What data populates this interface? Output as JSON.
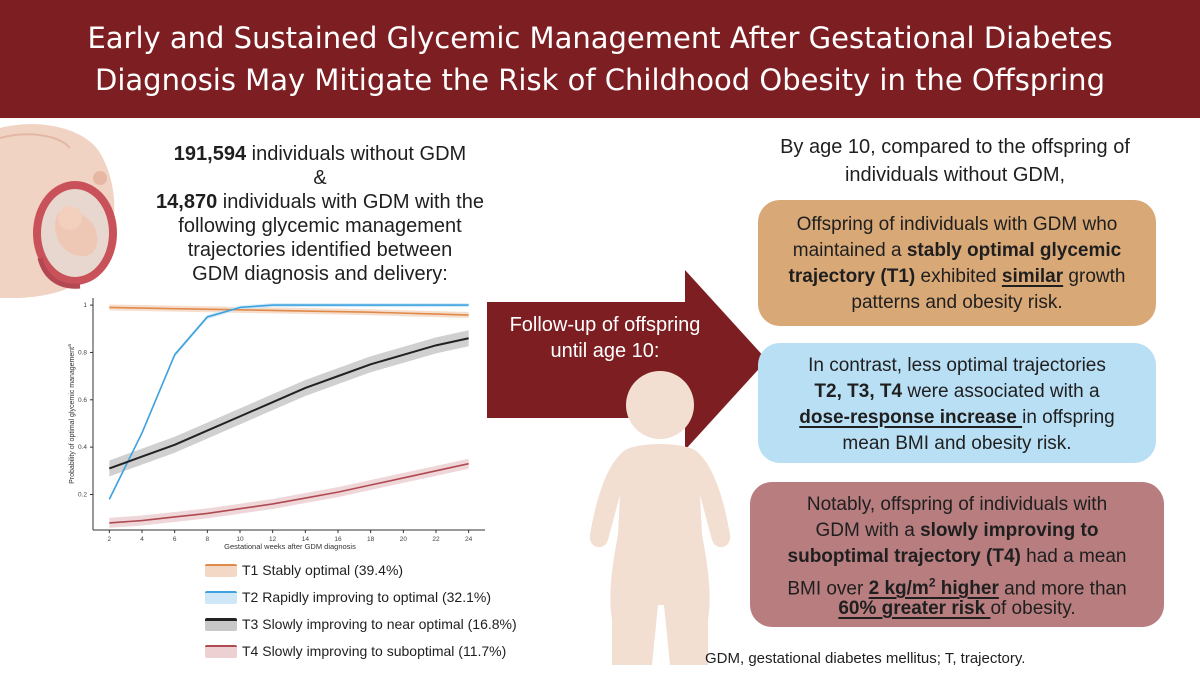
{
  "title": {
    "line1": "Early and Sustained Glycemic Management After Gestational Diabetes",
    "line2": "Diagnosis May Mitigate the Risk of Childhood Obesity in the Offspring"
  },
  "colors": {
    "banner": "#7d1f22",
    "t1": "#e08a4a",
    "t2": "#3ea2e0",
    "t3": "#222222",
    "t4": "#b04a52",
    "box1": "#d9a877",
    "box2": "#b9dff5",
    "box3": "#b77d7f"
  },
  "cohort": {
    "without_count": "191,594",
    "without_text": " individuals without GDM",
    "amp": "&",
    "with_count": "14,870",
    "with_text": " individuals with GDM with the",
    "line3": "following glycemic management",
    "line4": "trajectories identified between",
    "line5": "GDM diagnosis and delivery:"
  },
  "chart_data": {
    "type": "line",
    "xlabel": "Gestational weeks after GDM diagnosis",
    "ylabel": "Probability of optimal glycemic management",
    "ylabel_sup": "a",
    "xlim": [
      1,
      25
    ],
    "ylim": [
      0.05,
      1.03
    ],
    "x_ticks": [
      "2",
      "4",
      "6",
      "8",
      "10",
      "12",
      "14",
      "16",
      "18",
      "20",
      "22",
      "24"
    ],
    "y_ticks": [
      "0.2",
      "0.4",
      "0.6",
      "0.8",
      "1"
    ],
    "series": [
      {
        "name": "T1 Stably optimal (39.4%)",
        "color": "#e08a4a",
        "points": [
          [
            2,
            0.99
          ],
          [
            6,
            0.985
          ],
          [
            10,
            0.98
          ],
          [
            14,
            0.975
          ],
          [
            18,
            0.97
          ],
          [
            22,
            0.962
          ],
          [
            24,
            0.958
          ]
        ]
      },
      {
        "name": "T2 Rapidly improving to optimal (32.1%)",
        "color": "#3ea2e0",
        "points": [
          [
            2,
            0.18
          ],
          [
            4,
            0.46
          ],
          [
            6,
            0.79
          ],
          [
            8,
            0.95
          ],
          [
            10,
            0.99
          ],
          [
            12,
            1.0
          ],
          [
            16,
            1.0
          ],
          [
            20,
            1.0
          ],
          [
            24,
            1.0
          ]
        ]
      },
      {
        "name": "T3 Slowly improving to near optimal (16.8%)",
        "color": "#222222",
        "points": [
          [
            2,
            0.31
          ],
          [
            4,
            0.36
          ],
          [
            6,
            0.41
          ],
          [
            8,
            0.47
          ],
          [
            10,
            0.53
          ],
          [
            12,
            0.59
          ],
          [
            14,
            0.65
          ],
          [
            16,
            0.7
          ],
          [
            18,
            0.75
          ],
          [
            20,
            0.79
          ],
          [
            22,
            0.83
          ],
          [
            24,
            0.86
          ]
        ]
      },
      {
        "name": "T4 Slowly improving to suboptimal (11.7%)",
        "color": "#b04a52",
        "points": [
          [
            2,
            0.08
          ],
          [
            4,
            0.09
          ],
          [
            6,
            0.105
          ],
          [
            8,
            0.12
          ],
          [
            10,
            0.14
          ],
          [
            12,
            0.16
          ],
          [
            14,
            0.185
          ],
          [
            16,
            0.21
          ],
          [
            18,
            0.24
          ],
          [
            20,
            0.27
          ],
          [
            22,
            0.3
          ],
          [
            24,
            0.33
          ]
        ]
      }
    ]
  },
  "arrow": {
    "line1": "Follow-up of offspring",
    "line2": "until age 10:"
  },
  "intro_right": {
    "line1": "By age 10, compared to the offspring of",
    "line2": "individuals without GDM,"
  },
  "box1": {
    "l1": "Offspring of individuals with GDM who",
    "l2a": "maintained a ",
    "l2b": "stably optimal glycemic",
    "l3a": "trajectory (T1)",
    "l3b": " exhibited ",
    "l3c": "similar",
    "l3d": " growth",
    "l4": "patterns and obesity risk."
  },
  "box2": {
    "l1": "In contrast, less optimal trajectories",
    "l2a": "T2, T3, T4",
    "l2b": " were associated with a",
    "l3a": "dose-response increase ",
    "l3b": "in offspring",
    "l4": "mean BMI and obesity risk."
  },
  "box3": {
    "l1": "Notably, offspring of individuals with",
    "l2a": "GDM with a ",
    "l2b": "slowly improving to",
    "l3a": "suboptimal trajectory (T4)",
    "l3b": " had a mean",
    "l4a": "BMI over ",
    "l4b": "2 kg/m",
    "l4sup": "2",
    "l4c": " higher",
    "l4d": " and more than",
    "l5a": "60% greater risk ",
    "l5b": "of obesity."
  },
  "footnote": "GDM, gestational diabetes mellitus; T, trajectory."
}
